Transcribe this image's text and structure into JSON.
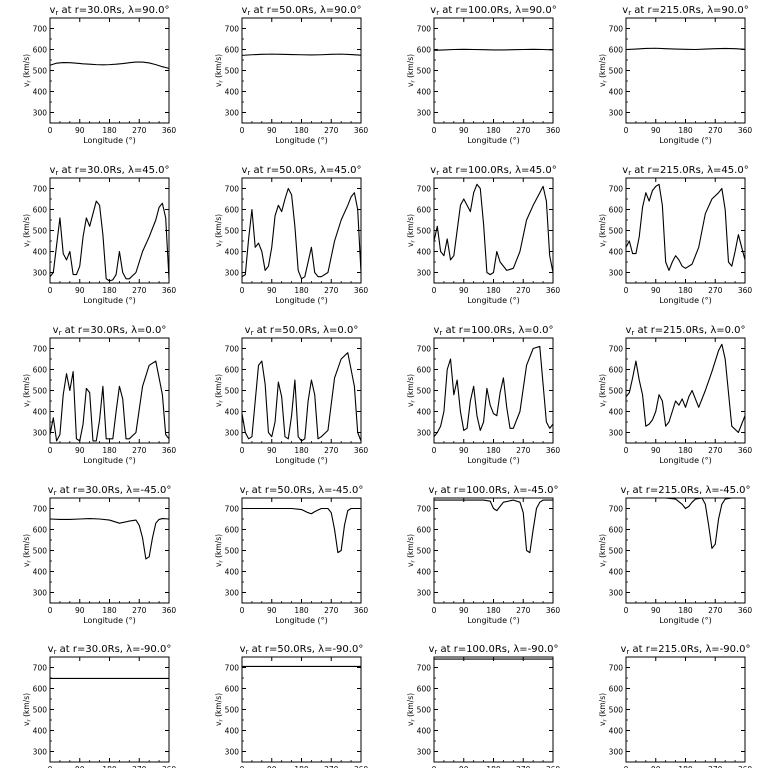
{
  "figure": {
    "xlabel": "Longitude (°)",
    "ylabel": "v",
    "ylabel_sub": "r",
    "ylabel_units": "(km/s)",
    "xticks": [
      0,
      90,
      180,
      270,
      360
    ],
    "yticks": [
      300,
      400,
      500,
      600,
      700
    ],
    "xlim": [
      0,
      360
    ],
    "ylim": [
      250,
      750
    ],
    "line_color": "#000000"
  },
  "chart_data": [
    {
      "type": "line",
      "title": "vr at r=30.0Rs, λ=90.0°",
      "title_r": "30.0",
      "title_lat": "90.0",
      "x": [
        0,
        20,
        40,
        60,
        80,
        100,
        120,
        140,
        160,
        180,
        200,
        220,
        240,
        260,
        280,
        300,
        320,
        340,
        360
      ],
      "y": [
        525,
        535,
        538,
        537,
        535,
        532,
        530,
        528,
        527,
        528,
        530,
        533,
        537,
        540,
        540,
        536,
        528,
        518,
        510
      ]
    },
    {
      "type": "line",
      "title": "vr at r=50.0Rs, λ=90.0°",
      "title_r": "50.0",
      "title_lat": "90.0",
      "x": [
        0,
        30,
        60,
        90,
        120,
        150,
        180,
        210,
        240,
        270,
        300,
        330,
        360
      ],
      "y": [
        572,
        575,
        577,
        578,
        577,
        576,
        575,
        574,
        575,
        577,
        578,
        576,
        573
      ]
    },
    {
      "type": "line",
      "title": "vr at r=100.0Rs, λ=90.0°",
      "title_r": "100.0",
      "title_lat": "90.0",
      "x": [
        0,
        30,
        60,
        90,
        120,
        150,
        180,
        210,
        240,
        270,
        300,
        330,
        360
      ],
      "y": [
        596,
        598,
        600,
        601,
        600,
        599,
        598,
        598,
        599,
        600,
        601,
        600,
        598
      ]
    },
    {
      "type": "line",
      "title": "vr at r=215.0Rs, λ=90.0°",
      "title_r": "215.0",
      "title_lat": "90.0",
      "x": [
        0,
        30,
        60,
        90,
        120,
        150,
        180,
        210,
        240,
        270,
        300,
        330,
        360
      ],
      "y": [
        600,
        602,
        605,
        606,
        604,
        602,
        601,
        600,
        602,
        604,
        605,
        604,
        601
      ]
    },
    {
      "type": "line",
      "title": "vr at r=30.0Rs, λ=45.0°",
      "title_r": "30.0",
      "title_lat": "45.0",
      "x": [
        0,
        10,
        20,
        30,
        40,
        50,
        60,
        70,
        80,
        90,
        100,
        110,
        120,
        130,
        140,
        150,
        160,
        170,
        180,
        190,
        200,
        210,
        220,
        230,
        240,
        260,
        280,
        300,
        320,
        330,
        340,
        350,
        360
      ],
      "y": [
        280,
        300,
        430,
        560,
        390,
        360,
        400,
        290,
        290,
        330,
        470,
        560,
        520,
        580,
        640,
        620,
        480,
        270,
        260,
        265,
        290,
        400,
        300,
        270,
        270,
        300,
        400,
        470,
        550,
        610,
        630,
        560,
        270
      ]
    },
    {
      "type": "line",
      "title": "vr at r=50.0Rs, λ=45.0°",
      "title_r": "50.0",
      "title_lat": "45.0",
      "x": [
        0,
        10,
        20,
        30,
        40,
        50,
        60,
        70,
        80,
        90,
        100,
        110,
        120,
        130,
        140,
        150,
        160,
        170,
        180,
        190,
        200,
        210,
        220,
        230,
        240,
        260,
        280,
        300,
        320,
        330,
        340,
        350,
        360
      ],
      "y": [
        280,
        290,
        460,
        600,
        420,
        440,
        400,
        310,
        330,
        420,
        570,
        620,
        590,
        650,
        700,
        670,
        520,
        310,
        270,
        280,
        350,
        420,
        300,
        280,
        280,
        300,
        450,
        550,
        620,
        660,
        680,
        600,
        300
      ]
    },
    {
      "type": "line",
      "title": "vr at r=100.0Rs, λ=45.0°",
      "title_r": "100.0",
      "title_lat": "45.0",
      "x": [
        0,
        10,
        20,
        30,
        40,
        50,
        60,
        70,
        80,
        90,
        100,
        110,
        120,
        130,
        140,
        150,
        160,
        170,
        180,
        190,
        200,
        220,
        240,
        260,
        280,
        300,
        320,
        330,
        340,
        350,
        360
      ],
      "y": [
        450,
        520,
        400,
        380,
        460,
        360,
        380,
        500,
        620,
        650,
        620,
        590,
        680,
        720,
        700,
        530,
        300,
        290,
        300,
        400,
        350,
        310,
        320,
        400,
        550,
        620,
        680,
        710,
        640,
        380,
        300
      ]
    },
    {
      "type": "line",
      "title": "vr at r=215.0Rs, λ=45.0°",
      "title_r": "215.0",
      "title_lat": "45.0",
      "x": [
        0,
        10,
        20,
        30,
        40,
        50,
        60,
        70,
        80,
        90,
        100,
        110,
        120,
        130,
        140,
        150,
        160,
        170,
        180,
        200,
        220,
        240,
        260,
        280,
        290,
        300,
        310,
        320,
        330,
        340,
        350,
        360
      ],
      "y": [
        420,
        450,
        390,
        390,
        470,
        610,
        680,
        640,
        690,
        710,
        720,
        620,
        350,
        310,
        350,
        380,
        360,
        330,
        320,
        340,
        420,
        580,
        650,
        680,
        700,
        600,
        350,
        330,
        400,
        480,
        420,
        360
      ]
    },
    {
      "type": "line",
      "title": "vr at r=30.0Rs, λ=0.0°",
      "title_r": "30.0",
      "title_lat": "0.0",
      "x": [
        0,
        10,
        20,
        30,
        40,
        50,
        60,
        70,
        80,
        90,
        100,
        110,
        120,
        130,
        140,
        150,
        160,
        170,
        180,
        190,
        200,
        210,
        220,
        230,
        240,
        260,
        280,
        300,
        320,
        340,
        350,
        360
      ],
      "y": [
        290,
        370,
        260,
        290,
        480,
        580,
        500,
        590,
        270,
        260,
        340,
        510,
        490,
        260,
        260,
        360,
        520,
        270,
        270,
        270,
        400,
        520,
        460,
        270,
        270,
        300,
        520,
        620,
        640,
        480,
        290,
        270
      ]
    },
    {
      "type": "line",
      "title": "vr at r=50.0Rs, λ=0.0°",
      "title_r": "50.0",
      "title_lat": "0.0",
      "x": [
        0,
        10,
        20,
        30,
        40,
        50,
        60,
        70,
        80,
        90,
        100,
        110,
        120,
        130,
        140,
        150,
        160,
        170,
        180,
        190,
        200,
        210,
        220,
        230,
        240,
        260,
        280,
        300,
        320,
        340,
        350,
        360
      ],
      "y": [
        390,
        300,
        270,
        280,
        450,
        620,
        640,
        530,
        300,
        280,
        350,
        540,
        470,
        280,
        270,
        380,
        550,
        280,
        260,
        270,
        450,
        550,
        480,
        270,
        280,
        310,
        560,
        650,
        680,
        520,
        300,
        260
      ]
    },
    {
      "type": "line",
      "title": "vr at r=100.0Rs, λ=0.0°",
      "title_r": "100.0",
      "title_lat": "0.0",
      "x": [
        0,
        10,
        20,
        30,
        40,
        50,
        60,
        70,
        80,
        90,
        100,
        110,
        120,
        130,
        140,
        150,
        160,
        170,
        180,
        190,
        200,
        210,
        220,
        230,
        240,
        260,
        280,
        300,
        320,
        340,
        350,
        360
      ],
      "y": [
        280,
        300,
        330,
        400,
        600,
        650,
        480,
        550,
        400,
        310,
        320,
        450,
        520,
        380,
        310,
        350,
        510,
        430,
        390,
        380,
        490,
        560,
        420,
        320,
        320,
        400,
        620,
        700,
        710,
        350,
        320,
        340
      ]
    },
    {
      "type": "line",
      "title": "vr at r=215.0Rs, λ=0.0°",
      "title_r": "215.0",
      "title_lat": "0.0",
      "x": [
        0,
        10,
        20,
        30,
        40,
        50,
        60,
        70,
        80,
        90,
        100,
        110,
        120,
        130,
        140,
        150,
        160,
        170,
        180,
        190,
        200,
        210,
        220,
        240,
        260,
        280,
        290,
        300,
        320,
        340,
        360
      ],
      "y": [
        470,
        490,
        560,
        640,
        550,
        480,
        330,
        340,
        360,
        400,
        480,
        450,
        330,
        350,
        400,
        450,
        430,
        460,
        420,
        470,
        500,
        460,
        420,
        500,
        590,
        690,
        720,
        650,
        330,
        300,
        380
      ]
    },
    {
      "type": "line",
      "title": "vr at r=30.0Rs, λ=-45.0°",
      "title_r": "30.0",
      "title_lat": "-45.0",
      "x": [
        0,
        30,
        60,
        90,
        120,
        150,
        180,
        210,
        240,
        260,
        270,
        280,
        290,
        300,
        310,
        320,
        330,
        340,
        360
      ],
      "y": [
        650,
        648,
        648,
        650,
        652,
        650,
        645,
        630,
        640,
        645,
        620,
        560,
        460,
        470,
        560,
        630,
        648,
        652,
        650
      ]
    },
    {
      "type": "line",
      "title": "vr at r=50.0Rs, λ=-45.0°",
      "title_r": "50.0",
      "title_lat": "-45.0",
      "x": [
        0,
        30,
        60,
        90,
        120,
        150,
        180,
        200,
        210,
        220,
        240,
        260,
        270,
        280,
        290,
        300,
        310,
        320,
        330,
        360
      ],
      "y": [
        700,
        700,
        700,
        700,
        700,
        700,
        695,
        680,
        675,
        685,
        700,
        700,
        680,
        600,
        490,
        500,
        620,
        690,
        700,
        700
      ]
    },
    {
      "type": "line",
      "title": "vr at r=100.0Rs, λ=-45.0°",
      "title_r": "100.0",
      "title_lat": "-45.0",
      "x": [
        0,
        30,
        60,
        90,
        120,
        150,
        170,
        180,
        190,
        200,
        210,
        240,
        260,
        270,
        280,
        290,
        300,
        310,
        320,
        330,
        360
      ],
      "y": [
        740,
        740,
        740,
        740,
        740,
        740,
        735,
        700,
        690,
        710,
        730,
        740,
        730,
        680,
        500,
        490,
        600,
        700,
        730,
        740,
        740
      ]
    },
    {
      "type": "line",
      "title": "vr at r=215.0Rs, λ=-45.0°",
      "title_r": "215.0",
      "title_lat": "-45.0",
      "x": [
        0,
        30,
        60,
        90,
        120,
        150,
        170,
        180,
        190,
        200,
        210,
        230,
        240,
        250,
        260,
        270,
        280,
        290,
        300,
        320,
        360
      ],
      "y": [
        750,
        750,
        750,
        750,
        750,
        745,
        720,
        700,
        710,
        730,
        745,
        750,
        720,
        620,
        510,
        530,
        650,
        720,
        745,
        750,
        750
      ]
    },
    {
      "type": "line",
      "title": "vr at r=30.0Rs, λ=-90.0°",
      "title_r": "30.0",
      "title_lat": "-90.0",
      "x": [
        0,
        90,
        180,
        270,
        360
      ],
      "y": [
        648,
        648,
        648,
        648,
        648
      ]
    },
    {
      "type": "line",
      "title": "vr at r=50.0Rs, λ=-90.0°",
      "title_r": "50.0",
      "title_lat": "-90.0",
      "x": [
        0,
        90,
        180,
        270,
        360
      ],
      "y": [
        705,
        705,
        705,
        705,
        705
      ]
    },
    {
      "type": "line",
      "title": "vr at r=100.0Rs, λ=-90.0°",
      "title_r": "100.0",
      "title_lat": "-90.0",
      "x": [
        0,
        90,
        180,
        270,
        360
      ],
      "y": [
        740,
        740,
        740,
        740,
        740
      ]
    },
    {
      "type": "line",
      "title": "vr at r=215.0Rs, λ=-90.0°",
      "title_r": "215.0",
      "title_lat": "-90.0",
      "x": [
        0,
        90,
        180,
        270,
        360
      ],
      "y": [
        752,
        752,
        752,
        752,
        752
      ]
    }
  ]
}
